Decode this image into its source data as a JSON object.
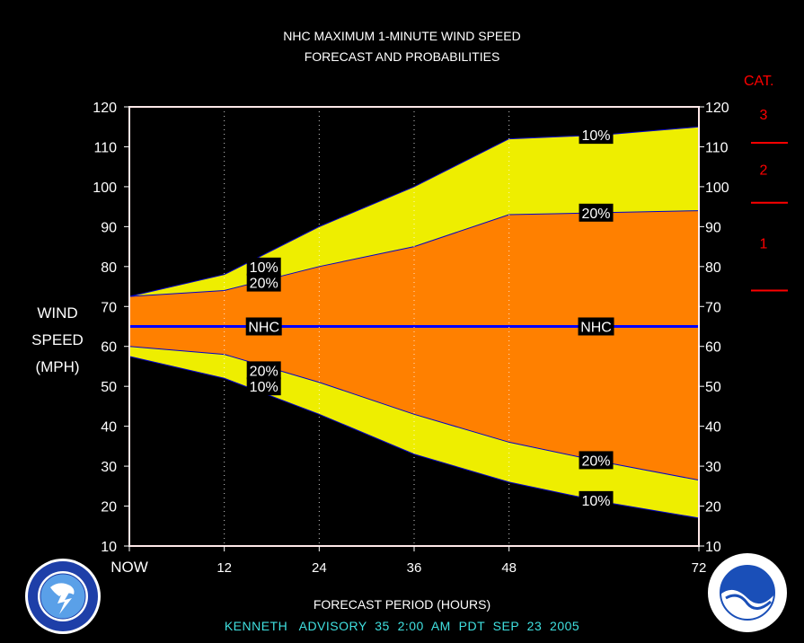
{
  "title_line1": "NHC MAXIMUM 1-MINUTE WIND SPEED",
  "title_line2": "FORECAST AND PROBABILITIES",
  "ylabel_lines": [
    "WIND",
    "SPEED",
    "(MPH)"
  ],
  "xlabel": "FORECAST PERIOD (HOURS)",
  "advisory": "KENNETH   ADVISORY  35  2:00  AM  PDT  SEP  23  2005",
  "category_title": "CAT.",
  "categories": [
    {
      "label": "3",
      "boundary_mph": 111
    },
    {
      "label": "2",
      "boundary_mph": 96
    },
    {
      "label": "1",
      "boundary_mph": 74
    }
  ],
  "colors": {
    "background": "#000000",
    "outer_band": "#eeee00",
    "inner_band": "#ff8000",
    "nhc_line": "#0000ff",
    "band_edge": "#0000cc",
    "category": "#ff0000",
    "advisory_text": "#40e0e0"
  },
  "chart_data": {
    "type": "area",
    "title": "NHC MAXIMUM 1-MINUTE WIND SPEED FORECAST AND PROBABILITIES",
    "xlabel": "FORECAST PERIOD (HOURS)",
    "ylabel": "WIND SPEED (MPH)",
    "x": [
      0,
      12,
      24,
      36,
      48,
      60,
      72
    ],
    "xticks": [
      {
        "value": 0,
        "label": "NOW"
      },
      {
        "value": 12,
        "label": "12"
      },
      {
        "value": 24,
        "label": "24"
      },
      {
        "value": 36,
        "label": "36"
      },
      {
        "value": 48,
        "label": "48"
      },
      {
        "value": 72,
        "label": "72"
      }
    ],
    "yticks": [
      10,
      20,
      30,
      40,
      50,
      60,
      70,
      80,
      90,
      100,
      110,
      120
    ],
    "xlim": [
      0,
      72
    ],
    "ylim": [
      10,
      120
    ],
    "series": [
      {
        "name": "10%",
        "values": [
          72.5,
          78,
          90,
          100,
          112,
          113,
          115
        ]
      },
      {
        "name": "20%",
        "values": [
          72.5,
          74,
          80,
          85,
          93,
          93.5,
          94
        ]
      },
      {
        "name": "NHC",
        "values": [
          65,
          65,
          65,
          65,
          65,
          65,
          65
        ]
      },
      {
        "name": "20%",
        "values": [
          60,
          58,
          51,
          43,
          36,
          31,
          26.5
        ]
      },
      {
        "name": "10%",
        "values": [
          57.5,
          52,
          43,
          33,
          26,
          21,
          17
        ]
      }
    ],
    "labels": [
      {
        "text": "10%",
        "x": 17,
        "y": 80
      },
      {
        "text": "20%",
        "x": 17,
        "y": 76
      },
      {
        "text": "NHC",
        "x": 17,
        "y": 65
      },
      {
        "text": "20%",
        "x": 17,
        "y": 54
      },
      {
        "text": "10%",
        "x": 17,
        "y": 50
      },
      {
        "text": "10%",
        "x": 59,
        "y": 113
      },
      {
        "text": "20%",
        "x": 59,
        "y": 93.5
      },
      {
        "text": "NHC",
        "x": 59,
        "y": 65
      },
      {
        "text": "20%",
        "x": 59,
        "y": 31.5
      },
      {
        "text": "10%",
        "x": 59,
        "y": 21.5
      }
    ],
    "grid": "dotted vertical at 12, 24, 36, 48"
  }
}
